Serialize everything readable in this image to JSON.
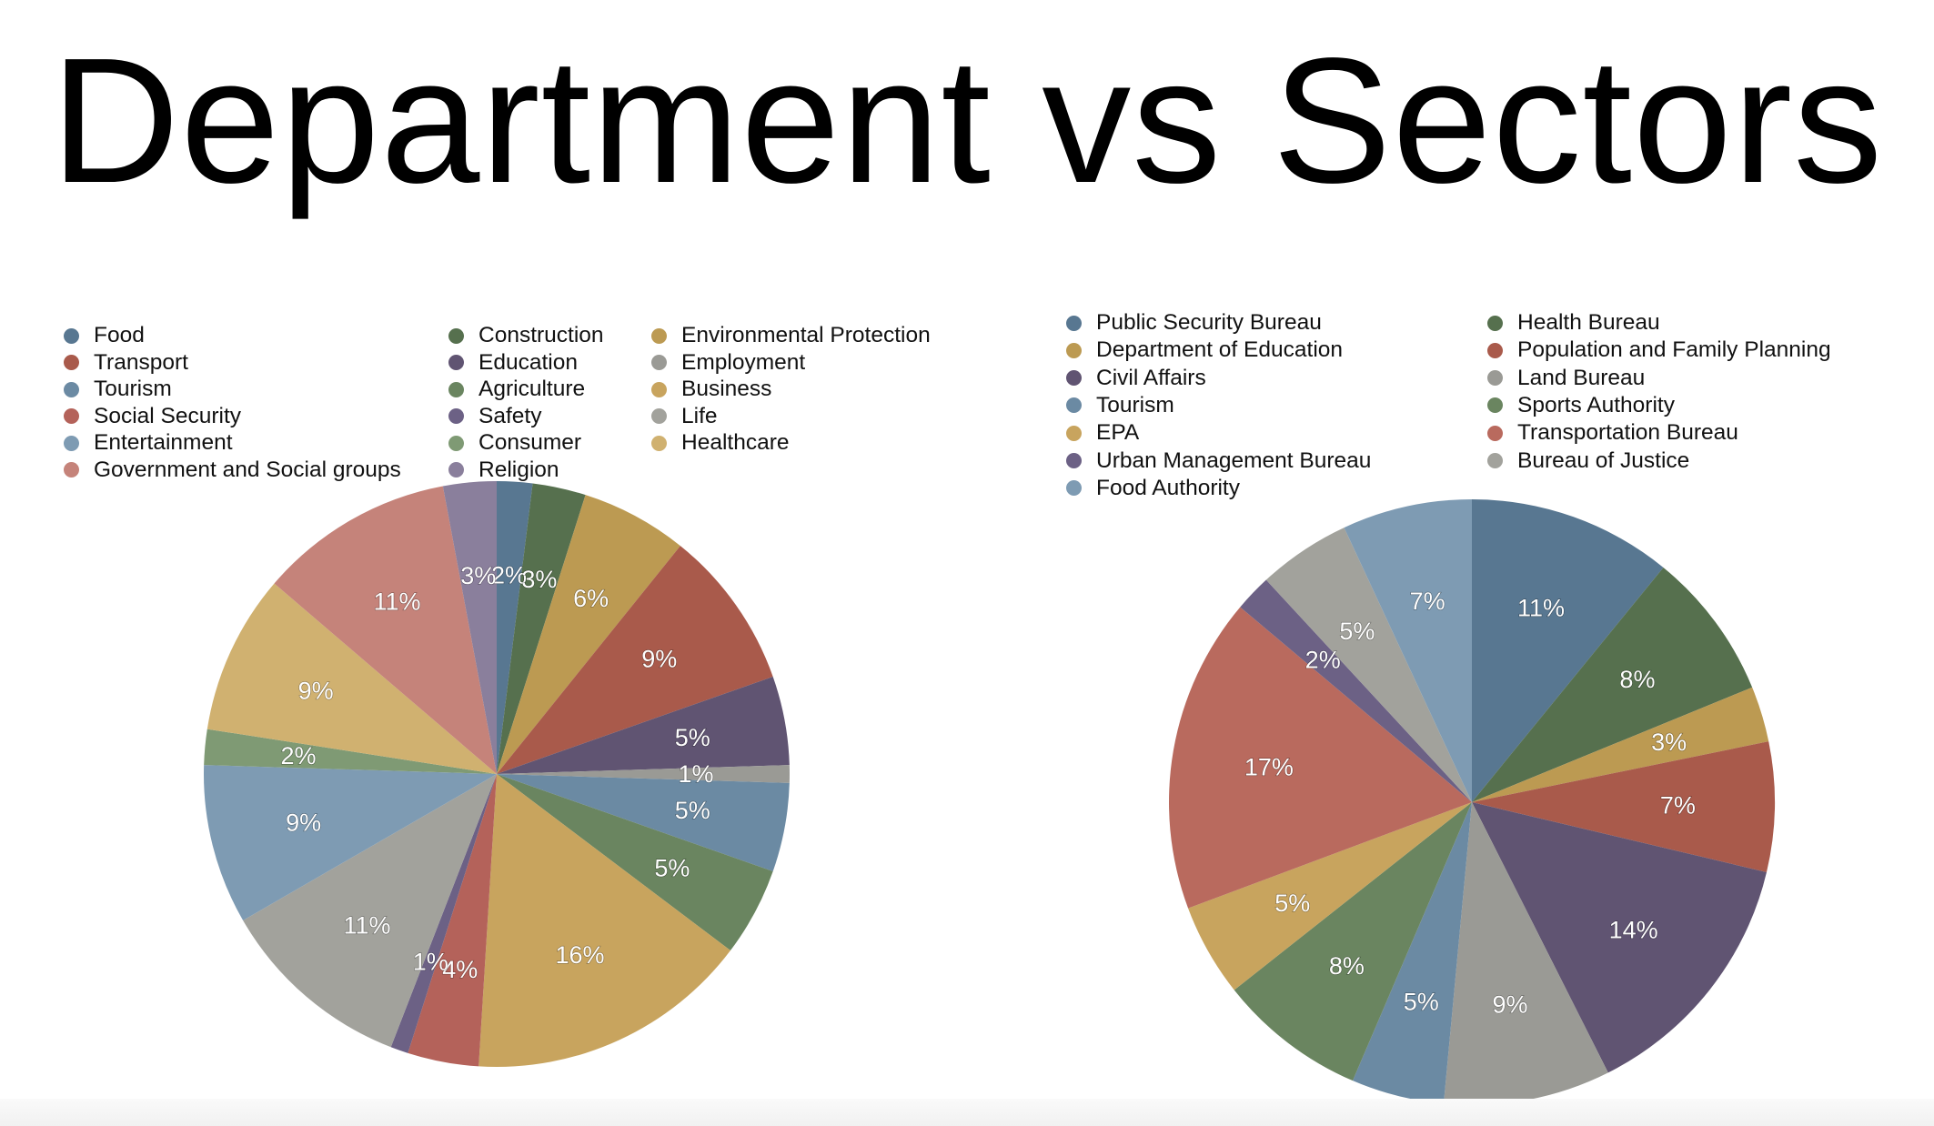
{
  "title": "Department vs Sectors",
  "chart_data": [
    {
      "type": "pie",
      "title": "",
      "legend_position": "top",
      "legend_columns": [
        [
          "Food",
          "Transport",
          "Tourism",
          "Social Security",
          "Entertainment",
          "Government and Social groups"
        ],
        [
          "Construction",
          "Education",
          "Agriculture",
          "Safety",
          "Consumer",
          "Religion"
        ],
        [
          "Environmental Protection",
          "Employment",
          "Business",
          "Life",
          "Healthcare"
        ]
      ],
      "slices": [
        {
          "name": "Food",
          "value": 2,
          "label": "2%",
          "color": "#587791"
        },
        {
          "name": "Construction",
          "value": 3,
          "label": "3%",
          "color": "#56704e"
        },
        {
          "name": "Environmental Protection",
          "value": 6,
          "label": "6%",
          "color": "#bc9a52"
        },
        {
          "name": "Transport",
          "value": 9,
          "label": "9%",
          "color": "#a95a4b"
        },
        {
          "name": "Education",
          "value": 5,
          "label": "5%",
          "color": "#605472"
        },
        {
          "name": "Employment",
          "value": 1,
          "label": "1%",
          "color": "#9a9a95"
        },
        {
          "name": "Tourism",
          "value": 5,
          "label": "5%",
          "color": "#6b8aa3"
        },
        {
          "name": "Agriculture",
          "value": 5,
          "label": "5%",
          "color": "#6a8560"
        },
        {
          "name": "Business",
          "value": 16,
          "label": "16%",
          "color": "#c8a45e"
        },
        {
          "name": "Social Security",
          "value": 4,
          "label": "4%",
          "color": "#b4625a"
        },
        {
          "name": "Safety",
          "value": 1,
          "label": "1%",
          "color": "#6c6185"
        },
        {
          "name": "Life",
          "value": 11,
          "label": "11%",
          "color": "#a2a29c"
        },
        {
          "name": "Entertainment",
          "value": 9,
          "label": "9%",
          "color": "#7e9bb3"
        },
        {
          "name": "Consumer",
          "value": 2,
          "label": "2%",
          "color": "#7f9a74"
        },
        {
          "name": "Healthcare",
          "value": 9,
          "label": "9%",
          "color": "#d0b170"
        },
        {
          "name": "Government and Social groups",
          "value": 11,
          "label": "11%",
          "color": "#c5837a"
        },
        {
          "name": "Religion",
          "value": 3,
          "label": "3%",
          "color": "#8a7f9c"
        }
      ]
    },
    {
      "type": "pie",
      "title": "",
      "legend_position": "top",
      "legend_columns": [
        [
          "Public Security Bureau",
          "Department of Education",
          "Civil Affairs",
          "Tourism",
          "EPA",
          "Urban Management Bureau",
          "Food Authority"
        ],
        [
          "Health Bureau",
          "Population and Family Planning",
          "Land Bureau",
          "Sports Authority",
          "Transportation Bureau",
          "Bureau of Justice"
        ]
      ],
      "slices": [
        {
          "name": "Public Security Bureau",
          "value": 11,
          "label": "11%",
          "color": "#587791"
        },
        {
          "name": "Health Bureau",
          "value": 8,
          "label": "8%",
          "color": "#56704e"
        },
        {
          "name": "Department of Education",
          "value": 3,
          "label": "3%",
          "color": "#bc9a52"
        },
        {
          "name": "Population and Family Planning",
          "value": 7,
          "label": "7%",
          "color": "#a95a4b"
        },
        {
          "name": "Civil Affairs",
          "value": 14,
          "label": "14%",
          "color": "#605472"
        },
        {
          "name": "Land Bureau",
          "value": 9,
          "label": "9%",
          "color": "#9a9a95"
        },
        {
          "name": "Tourism",
          "value": 5,
          "label": "5%",
          "color": "#6b8aa3"
        },
        {
          "name": "Sports Authority",
          "value": 8,
          "label": "8%",
          "color": "#6a8560"
        },
        {
          "name": "EPA",
          "value": 5,
          "label": "5%",
          "color": "#c8a45e"
        },
        {
          "name": "Transportation Bureau",
          "value": 17,
          "label": "17%",
          "color": "#b96a5e"
        },
        {
          "name": "Urban Management Bureau",
          "value": 2,
          "label": "2%",
          "color": "#6c6185"
        },
        {
          "name": "Bureau of Justice",
          "value": 5,
          "label": "5%",
          "color": "#a2a29c"
        },
        {
          "name": "Food Authority",
          "value": 7,
          "label": "7%",
          "color": "#7e9bb3"
        }
      ]
    }
  ]
}
